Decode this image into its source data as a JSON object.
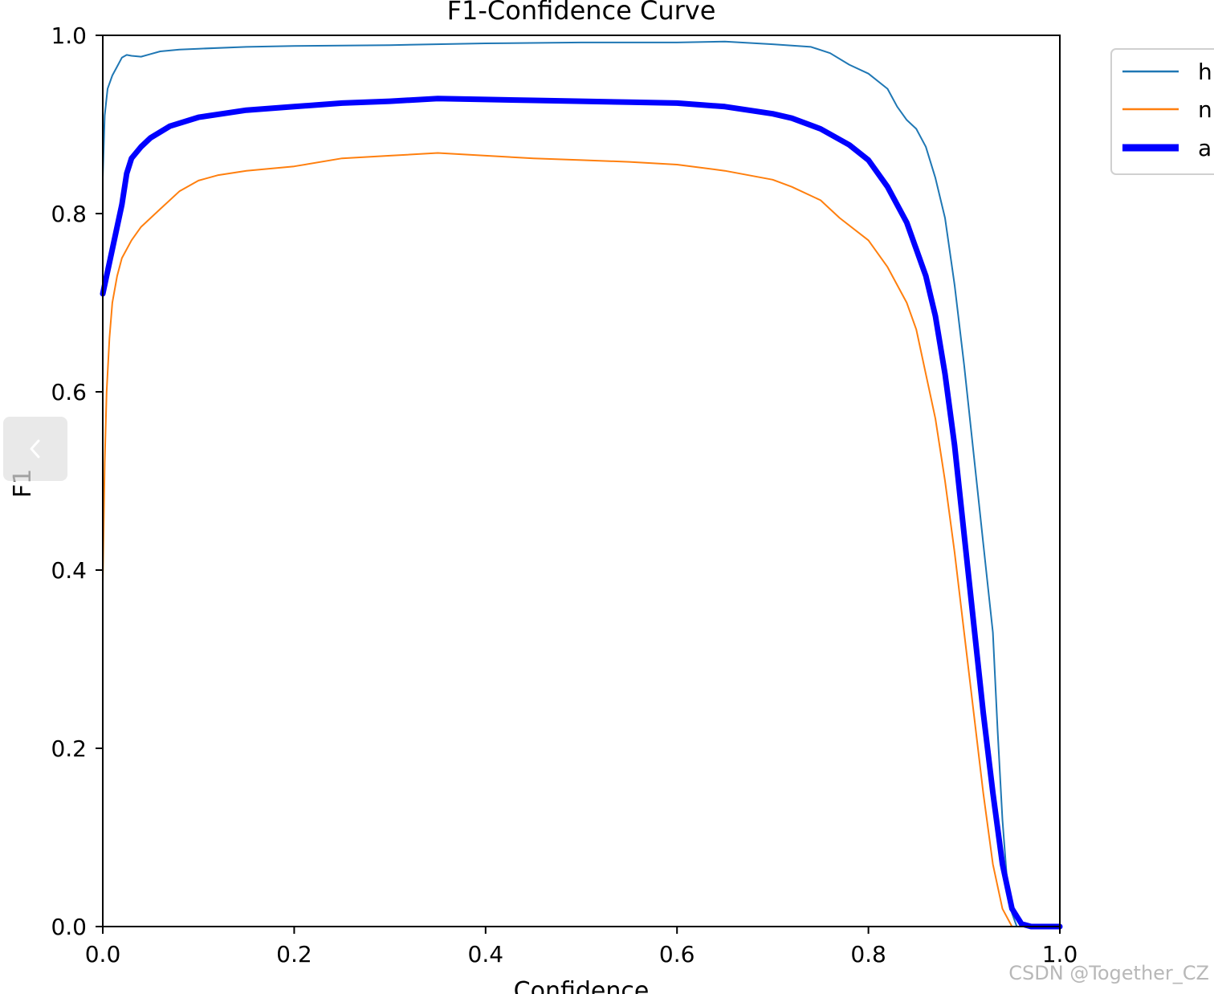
{
  "chart_data": {
    "type": "line",
    "title": "F1-Confidence Curve",
    "xlabel": "Confidence",
    "ylabel": "F1",
    "xlim": [
      0.0,
      1.0
    ],
    "ylim": [
      0.0,
      1.0
    ],
    "xticks": [
      "0.0",
      "0.2",
      "0.4",
      "0.6",
      "0.8",
      "1.0"
    ],
    "yticks": [
      "0.0",
      "0.2",
      "0.4",
      "0.6",
      "0.8",
      "1.0"
    ],
    "grid": false,
    "legend_position": "outside top-right",
    "series": [
      {
        "name": "h",
        "color": "#1f77b4",
        "points": [
          [
            0.0,
            0.84
          ],
          [
            0.002,
            0.91
          ],
          [
            0.005,
            0.94
          ],
          [
            0.01,
            0.955
          ],
          [
            0.015,
            0.965
          ],
          [
            0.02,
            0.975
          ],
          [
            0.025,
            0.978
          ],
          [
            0.03,
            0.977
          ],
          [
            0.04,
            0.976
          ],
          [
            0.05,
            0.979
          ],
          [
            0.06,
            0.982
          ],
          [
            0.08,
            0.984
          ],
          [
            0.1,
            0.985
          ],
          [
            0.15,
            0.987
          ],
          [
            0.2,
            0.988
          ],
          [
            0.3,
            0.989
          ],
          [
            0.4,
            0.991
          ],
          [
            0.5,
            0.992
          ],
          [
            0.6,
            0.992
          ],
          [
            0.65,
            0.993
          ],
          [
            0.7,
            0.99
          ],
          [
            0.74,
            0.987
          ],
          [
            0.76,
            0.98
          ],
          [
            0.78,
            0.967
          ],
          [
            0.8,
            0.957
          ],
          [
            0.82,
            0.94
          ],
          [
            0.83,
            0.92
          ],
          [
            0.84,
            0.905
          ],
          [
            0.85,
            0.895
          ],
          [
            0.86,
            0.875
          ],
          [
            0.87,
            0.84
          ],
          [
            0.88,
            0.795
          ],
          [
            0.89,
            0.72
          ],
          [
            0.9,
            0.63
          ],
          [
            0.91,
            0.53
          ],
          [
            0.92,
            0.43
          ],
          [
            0.93,
            0.33
          ],
          [
            0.935,
            0.22
          ],
          [
            0.94,
            0.12
          ],
          [
            0.945,
            0.05
          ],
          [
            0.95,
            0.015
          ],
          [
            0.955,
            0.0
          ],
          [
            1.0,
            0.0
          ]
        ]
      },
      {
        "name": "n",
        "color": "#ff7f0e",
        "points": [
          [
            0.0,
            0.385
          ],
          [
            0.002,
            0.52
          ],
          [
            0.004,
            0.6
          ],
          [
            0.007,
            0.66
          ],
          [
            0.01,
            0.7
          ],
          [
            0.015,
            0.73
          ],
          [
            0.02,
            0.75
          ],
          [
            0.03,
            0.77
          ],
          [
            0.04,
            0.785
          ],
          [
            0.06,
            0.805
          ],
          [
            0.08,
            0.825
          ],
          [
            0.1,
            0.837
          ],
          [
            0.12,
            0.843
          ],
          [
            0.15,
            0.848
          ],
          [
            0.2,
            0.853
          ],
          [
            0.25,
            0.862
          ],
          [
            0.3,
            0.865
          ],
          [
            0.35,
            0.868
          ],
          [
            0.4,
            0.865
          ],
          [
            0.45,
            0.862
          ],
          [
            0.5,
            0.86
          ],
          [
            0.55,
            0.858
          ],
          [
            0.6,
            0.855
          ],
          [
            0.65,
            0.848
          ],
          [
            0.7,
            0.838
          ],
          [
            0.72,
            0.83
          ],
          [
            0.75,
            0.815
          ],
          [
            0.77,
            0.795
          ],
          [
            0.8,
            0.77
          ],
          [
            0.82,
            0.74
          ],
          [
            0.84,
            0.7
          ],
          [
            0.85,
            0.67
          ],
          [
            0.86,
            0.62
          ],
          [
            0.87,
            0.57
          ],
          [
            0.88,
            0.5
          ],
          [
            0.89,
            0.42
          ],
          [
            0.9,
            0.33
          ],
          [
            0.91,
            0.24
          ],
          [
            0.92,
            0.15
          ],
          [
            0.93,
            0.07
          ],
          [
            0.94,
            0.02
          ],
          [
            0.95,
            0.0
          ],
          [
            1.0,
            0.0
          ]
        ]
      },
      {
        "name": "a",
        "color": "#0000ff",
        "points": [
          [
            0.0,
            0.71
          ],
          [
            0.01,
            0.76
          ],
          [
            0.02,
            0.81
          ],
          [
            0.025,
            0.845
          ],
          [
            0.03,
            0.862
          ],
          [
            0.04,
            0.875
          ],
          [
            0.05,
            0.885
          ],
          [
            0.07,
            0.898
          ],
          [
            0.1,
            0.908
          ],
          [
            0.15,
            0.916
          ],
          [
            0.2,
            0.92
          ],
          [
            0.25,
            0.924
          ],
          [
            0.3,
            0.926
          ],
          [
            0.35,
            0.929
          ],
          [
            0.4,
            0.928
          ],
          [
            0.45,
            0.927
          ],
          [
            0.5,
            0.926
          ],
          [
            0.55,
            0.925
          ],
          [
            0.6,
            0.924
          ],
          [
            0.65,
            0.92
          ],
          [
            0.7,
            0.912
          ],
          [
            0.72,
            0.907
          ],
          [
            0.75,
            0.895
          ],
          [
            0.78,
            0.877
          ],
          [
            0.8,
            0.86
          ],
          [
            0.82,
            0.83
          ],
          [
            0.84,
            0.79
          ],
          [
            0.86,
            0.73
          ],
          [
            0.87,
            0.685
          ],
          [
            0.88,
            0.62
          ],
          [
            0.89,
            0.54
          ],
          [
            0.9,
            0.44
          ],
          [
            0.91,
            0.34
          ],
          [
            0.92,
            0.24
          ],
          [
            0.93,
            0.15
          ],
          [
            0.94,
            0.07
          ],
          [
            0.95,
            0.02
          ],
          [
            0.96,
            0.003
          ],
          [
            0.97,
            0.0
          ],
          [
            1.0,
            0.0
          ]
        ]
      }
    ]
  },
  "legend": {
    "entries": [
      {
        "label": "h",
        "color": "#1f77b4"
      },
      {
        "label": "n",
        "color": "#ff7f0e"
      },
      {
        "label": "a",
        "color": "#0000ff"
      }
    ]
  },
  "watermark": {
    "text": "CSDN @Together_CZ"
  },
  "nav": {
    "icon": "chevron-left-icon"
  }
}
